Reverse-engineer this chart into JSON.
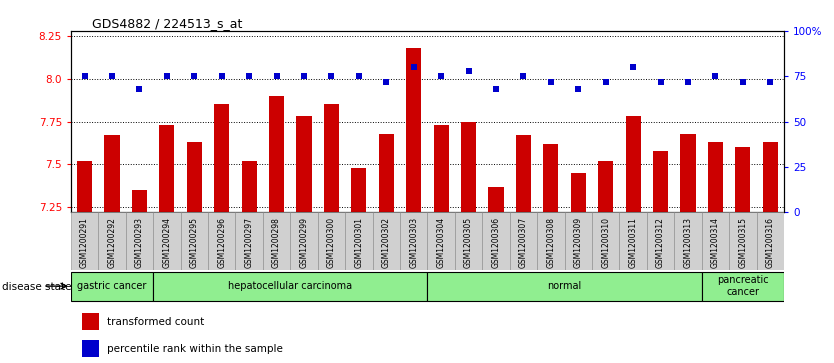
{
  "title": "GDS4882 / 224513_s_at",
  "samples": [
    "GSM1200291",
    "GSM1200292",
    "GSM1200293",
    "GSM1200294",
    "GSM1200295",
    "GSM1200296",
    "GSM1200297",
    "GSM1200298",
    "GSM1200299",
    "GSM1200300",
    "GSM1200301",
    "GSM1200302",
    "GSM1200303",
    "GSM1200304",
    "GSM1200305",
    "GSM1200306",
    "GSM1200307",
    "GSM1200308",
    "GSM1200309",
    "GSM1200310",
    "GSM1200311",
    "GSM1200312",
    "GSM1200313",
    "GSM1200314",
    "GSM1200315",
    "GSM1200316"
  ],
  "bar_values": [
    7.52,
    7.67,
    7.35,
    7.73,
    7.63,
    7.85,
    7.52,
    7.9,
    7.78,
    7.85,
    7.48,
    7.68,
    8.18,
    7.73,
    7.75,
    7.37,
    7.67,
    7.62,
    7.45,
    7.52,
    7.78,
    7.58,
    7.68,
    7.63,
    7.6,
    7.63
  ],
  "percentile_values": [
    75,
    75,
    68,
    75,
    75,
    75,
    75,
    75,
    75,
    75,
    75,
    72,
    80,
    75,
    78,
    68,
    75,
    72,
    68,
    72,
    80,
    72,
    72,
    75,
    72,
    72
  ],
  "group_boundaries": [
    [
      0,
      3,
      "gastric cancer"
    ],
    [
      3,
      13,
      "hepatocellular carcinoma"
    ],
    [
      13,
      23,
      "normal"
    ],
    [
      23,
      26,
      "pancreatic\ncancer"
    ]
  ],
  "ylim_left": [
    7.22,
    8.28
  ],
  "ylim_right": [
    0,
    100
  ],
  "yticks_left": [
    7.25,
    7.5,
    7.75,
    8.0,
    8.25
  ],
  "yticks_right": [
    0,
    25,
    50,
    75,
    100
  ],
  "ytick_labels_right": [
    "0",
    "25",
    "50",
    "75",
    "100%"
  ],
  "bar_color": "#CC0000",
  "dot_color": "#0000CC",
  "background_color": "#ffffff",
  "group_color": "#90EE90",
  "label_transformed": "transformed count",
  "label_percentile": "percentile rank within the sample",
  "disease_state_label": "disease state"
}
